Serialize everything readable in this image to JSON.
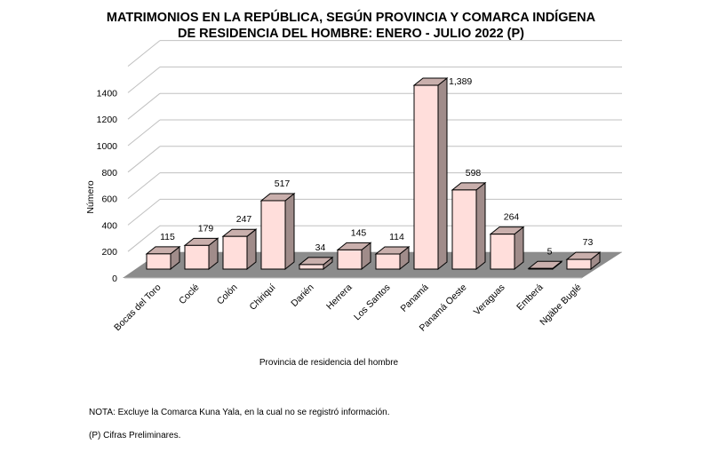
{
  "chart_data": {
    "type": "bar",
    "title_line1": "MATRIMONIOS  EN LA REPÚBLICA, SEGÚN PROVINCIA Y COMARCA INDÍGENA",
    "title_line2": "DE RESIDENCIA DEL HOMBRE: ENERO - JULIO 2022 (P)",
    "xlabel": "Provincia de residencia del hombre",
    "ylabel": "Número",
    "ylim": [
      0,
      1600
    ],
    "yticks": [
      0,
      200,
      400,
      600,
      800,
      1000,
      1200,
      1400
    ],
    "categories": [
      "Bocas del Toro",
      "Coclé",
      "Colón",
      "Chiriquí",
      "Darién",
      "Herrera",
      "Los Santos",
      "Panamá",
      "Panamá Oeste",
      "Veraguas",
      "Emberá",
      "Ngäbe Buglé"
    ],
    "values": [
      115,
      179,
      247,
      517,
      34,
      145,
      114,
      1389,
      598,
      264,
      5,
      73
    ],
    "data_labels": [
      "115",
      "179",
      "247",
      "517",
      "34",
      "145",
      "114",
      "1,389",
      "598",
      "264",
      "5",
      "73"
    ],
    "grid": true,
    "colors": {
      "bar_front": "#FFDEDB",
      "bar_side": "#A08C8A",
      "bar_top": "#C9AFAC",
      "floor": "#8C8C8C",
      "grid": "#C0C0C0"
    }
  },
  "notes": {
    "nota": "NOTA:  Excluye la Comarca Kuna Yala, en la  cual no se registró información.",
    "prelim": "(P) Cifras Preliminares."
  }
}
